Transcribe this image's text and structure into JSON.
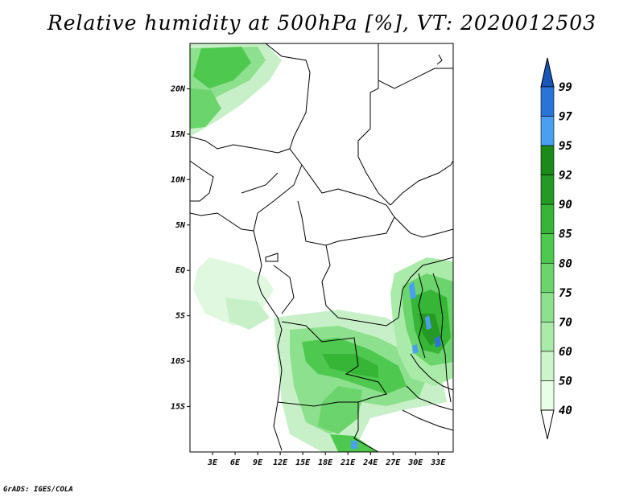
{
  "title": "Relative humidity at 500hPa [%], VT: 2020012503",
  "credit": "GrADS: IGES/COLA",
  "map": {
    "lat_labels": [
      "20N",
      "15N",
      "10N",
      "5N",
      "EQ",
      "5S",
      "10S",
      "15S"
    ],
    "lat_values": [
      20,
      15,
      10,
      5,
      0,
      -5,
      -10,
      -15
    ],
    "lon_labels": [
      "3E",
      "6E",
      "9E",
      "12E",
      "15E",
      "18E",
      "21E",
      "24E",
      "27E",
      "30E",
      "33E"
    ],
    "lon_values": [
      3,
      6,
      9,
      12,
      15,
      18,
      21,
      24,
      27,
      30,
      33
    ],
    "lon_range": [
      0,
      35
    ],
    "lat_range": [
      -20,
      25
    ]
  },
  "colorbar": {
    "labels": [
      "99",
      "97",
      "95",
      "92",
      "90",
      "85",
      "80",
      "75",
      "70",
      "60",
      "50",
      "40"
    ],
    "levels": [
      40,
      50,
      60,
      70,
      75,
      80,
      85,
      90,
      92,
      95,
      97,
      99
    ],
    "colors": [
      "#ffffff",
      "#e6ffe6",
      "#ccf5cc",
      "#aaebaa",
      "#8de08d",
      "#6cd46c",
      "#4fc84f",
      "#36b536",
      "#249a24",
      "#1a8a1a",
      "#4aa0f0",
      "#2a74d8",
      "#1a55b8"
    ]
  }
}
